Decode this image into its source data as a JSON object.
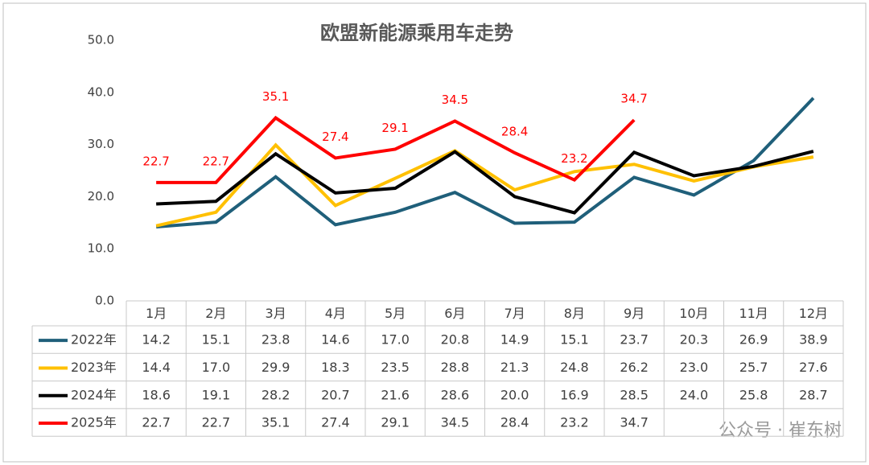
{
  "chart_data": {
    "type": "line",
    "title": "欧盟新能源乘用车走势",
    "categories": [
      "1月",
      "2月",
      "3月",
      "4月",
      "5月",
      "6月",
      "7月",
      "8月",
      "9月",
      "10月",
      "11月",
      "12月"
    ],
    "ylim": [
      0,
      50
    ],
    "yticks": [
      {
        "value": 0,
        "label": "0.0"
      },
      {
        "value": 10,
        "label": "10.0"
      },
      {
        "value": 20,
        "label": "20.0"
      },
      {
        "value": 30,
        "label": "30.0"
      },
      {
        "value": 40,
        "label": "40.0"
      },
      {
        "value": 50,
        "label": "50.0"
      }
    ],
    "series": [
      {
        "name": "2022年",
        "color": "#1f5f7a",
        "values": [
          14.2,
          15.1,
          23.8,
          14.6,
          17.0,
          20.8,
          14.9,
          15.1,
          23.7,
          20.3,
          26.9,
          38.9
        ],
        "value_labels": [
          "14.2",
          "15.1",
          "23.8",
          "14.6",
          "17.0",
          "20.8",
          "14.9",
          "15.1",
          "23.7",
          "20.3",
          "26.9",
          "38.9"
        ]
      },
      {
        "name": "2023年",
        "color": "#ffc000",
        "values": [
          14.4,
          17.0,
          29.9,
          18.3,
          23.5,
          28.8,
          21.3,
          24.8,
          26.2,
          23.0,
          25.7,
          27.6
        ],
        "value_labels": [
          "14.4",
          "17.0",
          "29.9",
          "18.3",
          "23.5",
          "28.8",
          "21.3",
          "24.8",
          "26.2",
          "23.0",
          "25.7",
          "27.6"
        ]
      },
      {
        "name": "2024年",
        "color": "#000000",
        "values": [
          18.6,
          19.1,
          28.2,
          20.7,
          21.6,
          28.6,
          20.0,
          16.9,
          28.5,
          24.0,
          25.8,
          28.7
        ],
        "value_labels": [
          "18.6",
          "19.1",
          "28.2",
          "20.7",
          "21.6",
          "28.6",
          "20.0",
          "16.9",
          "28.5",
          "24.0",
          "25.8",
          "28.7"
        ]
      },
      {
        "name": "2025年",
        "color": "#ff0000",
        "data_labels": true,
        "values": [
          22.7,
          22.7,
          35.1,
          27.4,
          29.1,
          34.5,
          28.4,
          23.2,
          34.7,
          null,
          null,
          null
        ],
        "value_labels": [
          "22.7",
          "22.7",
          "35.1",
          "27.4",
          "29.1",
          "34.5",
          "28.4",
          "23.2",
          "34.7",
          null,
          null,
          null
        ]
      }
    ],
    "watermark": "公众号 · 崔东树"
  }
}
